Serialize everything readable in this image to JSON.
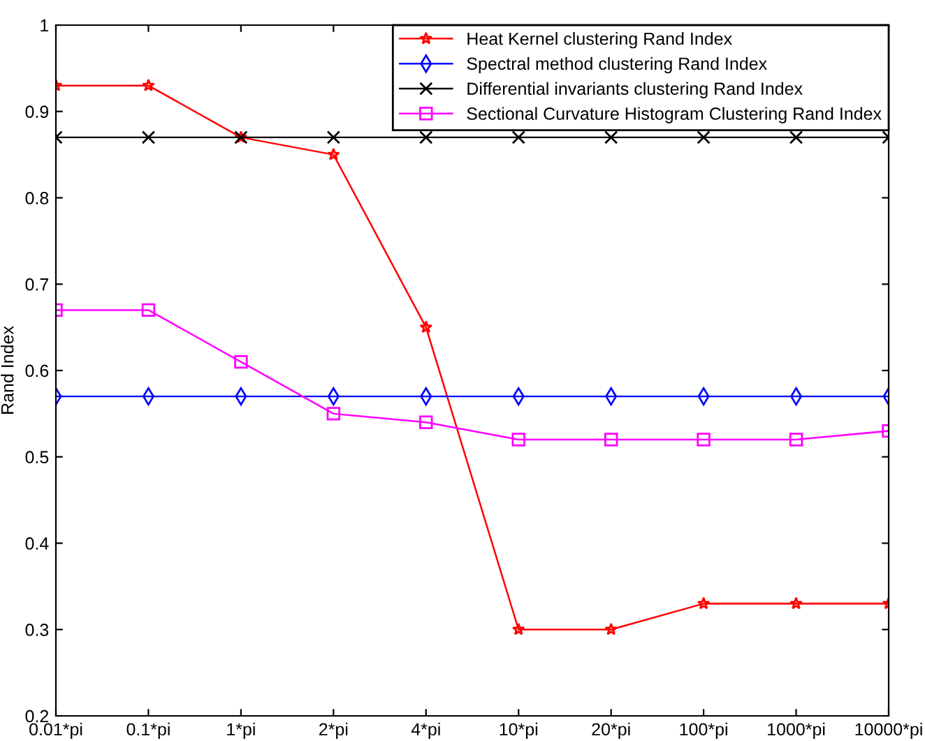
{
  "chart_data": {
    "type": "line",
    "ylabel": "Rand Index",
    "categories": [
      "0.01*pi",
      "0.1*pi",
      "1*pi",
      "2*pi",
      "4*pi",
      "10*pi",
      "20*pi",
      "100*pi",
      "1000*pi",
      "10000*pi"
    ],
    "series": [
      {
        "name": "Heat Kernel clustering Rand Index",
        "color": "#ff0000",
        "marker": "star",
        "values": [
          0.93,
          0.93,
          0.87,
          0.85,
          0.65,
          0.3,
          0.3,
          0.33,
          0.33,
          0.33
        ]
      },
      {
        "name": "Spectral method clustering Rand Index",
        "color": "#0000ff",
        "marker": "diamond",
        "values": [
          0.57,
          0.57,
          0.57,
          0.57,
          0.57,
          0.57,
          0.57,
          0.57,
          0.57,
          0.57
        ]
      },
      {
        "name": "Differential invariants clustering Rand Index",
        "color": "#000000",
        "marker": "cross",
        "values": [
          0.87,
          0.87,
          0.87,
          0.87,
          0.87,
          0.87,
          0.87,
          0.87,
          0.87,
          0.87
        ]
      },
      {
        "name": "Sectional Curvature Histogram Clustering Rand Index",
        "color": "#ff00ff",
        "marker": "square",
        "values": [
          0.67,
          0.67,
          0.61,
          0.55,
          0.54,
          0.52,
          0.52,
          0.52,
          0.52,
          0.53
        ]
      }
    ],
    "ylim": [
      0.2,
      1
    ],
    "yticks": [
      0.2,
      0.3,
      0.4,
      0.5,
      0.6,
      0.7,
      0.8,
      0.9,
      1
    ],
    "legend": "top right",
    "grid": false,
    "line_style": "solid"
  }
}
